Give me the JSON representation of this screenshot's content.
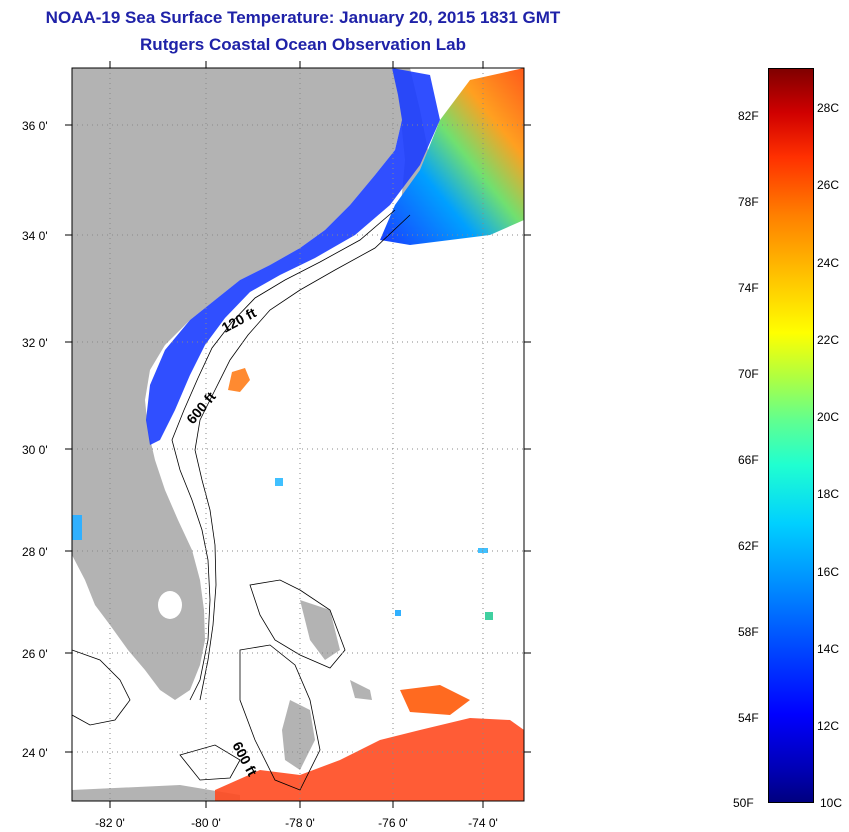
{
  "title": {
    "line1": "NOAA-19 Sea Surface Temperature:  January 20, 2015 1831 GMT",
    "line2": "Rutgers Coastal Ocean Observation Lab"
  },
  "map": {
    "lat_labels": [
      "36 0'",
      "34 0'",
      "32 0'",
      "30 0'",
      "28 0'",
      "26 0'",
      "24 0'"
    ],
    "lon_labels": [
      "-82 0'",
      "-80 0'",
      "-78 0'",
      "-76 0'",
      "-74 0'"
    ],
    "contour_labels": [
      "120 ft",
      "600 ft",
      "600 ft"
    ],
    "colors": {
      "land": "#b3b3b3",
      "ocean": "#ffffff",
      "cold_sst": "#1a3cff",
      "warm_sst": "#ff5a1a"
    }
  },
  "colorbar": {
    "fahrenheit": [
      "82F",
      "78F",
      "74F",
      "70F",
      "66F",
      "62F",
      "58F",
      "54F",
      "50F"
    ],
    "celsius": [
      "28C",
      "26C",
      "24C",
      "22C",
      "20C",
      "18C",
      "16C",
      "14C",
      "12C",
      "10C"
    ]
  }
}
